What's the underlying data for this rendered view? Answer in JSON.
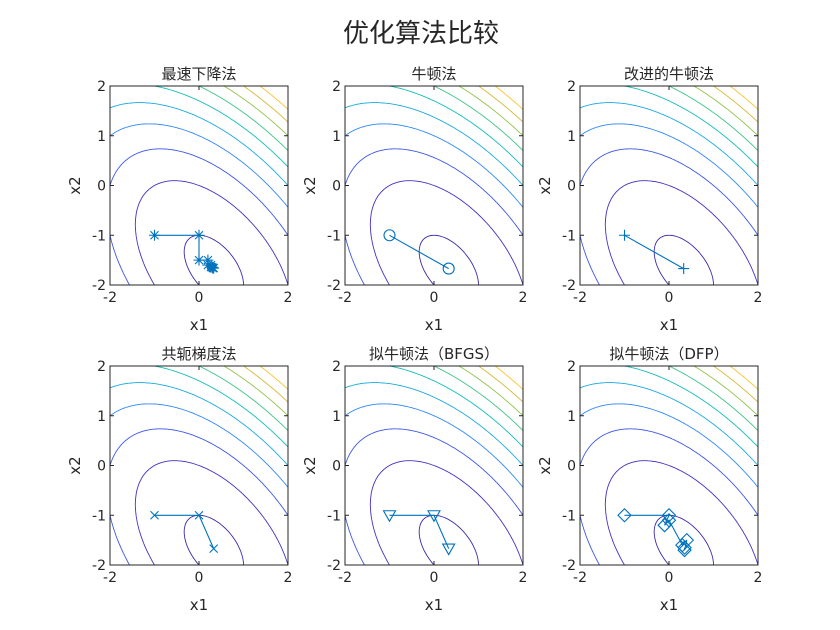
{
  "figure": {
    "title": "优化算法比较"
  },
  "chart_data": [
    {
      "type": "line",
      "title": "最速下降法",
      "xlabel": "x1",
      "ylabel": "x2",
      "xlim": [
        -2,
        2
      ],
      "ylim": [
        -2,
        2
      ],
      "xticks": [
        "-2",
        "0",
        "2"
      ],
      "yticks": [
        "2",
        "1",
        "0",
        "-1",
        "-2"
      ],
      "marker": "asterisk",
      "series": [
        {
          "x": [
            -1,
            0,
            0,
            0.2,
            0.2,
            0.27,
            0.27,
            0.3,
            0.31,
            0.33
          ],
          "y": [
            -1,
            -1,
            -1.5,
            -1.5,
            -1.6,
            -1.6,
            -1.64,
            -1.64,
            -1.66,
            -1.66
          ]
        }
      ]
    },
    {
      "type": "line",
      "title": "牛顿法",
      "xlabel": "x1",
      "ylabel": "x2",
      "xlim": [
        -2,
        2
      ],
      "ylim": [
        -2,
        2
      ],
      "xticks": [
        "-2",
        "0",
        "2"
      ],
      "yticks": [
        "2",
        "1",
        "0",
        "-1",
        "-2"
      ],
      "marker": "circle",
      "series": [
        {
          "x": [
            -1,
            0.33
          ],
          "y": [
            -1,
            -1.67
          ]
        }
      ]
    },
    {
      "type": "line",
      "title": "改进的牛顿法",
      "xlabel": "x1",
      "ylabel": "x2",
      "xlim": [
        -2,
        2
      ],
      "ylim": [
        -2,
        2
      ],
      "xticks": [
        "-2",
        "0",
        "2"
      ],
      "yticks": [
        "2",
        "1",
        "0",
        "-1",
        "-2"
      ],
      "marker": "plus",
      "series": [
        {
          "x": [
            -1,
            0.33
          ],
          "y": [
            -1,
            -1.67
          ]
        }
      ]
    },
    {
      "type": "line",
      "title": "共轭梯度法",
      "xlabel": "x1",
      "ylabel": "x2",
      "xlim": [
        -2,
        2
      ],
      "ylim": [
        -2,
        2
      ],
      "xticks": [
        "-2",
        "0",
        "2"
      ],
      "yticks": [
        "2",
        "1",
        "0",
        "-1",
        "-2"
      ],
      "marker": "x",
      "series": [
        {
          "x": [
            -1,
            0,
            0.33
          ],
          "y": [
            -1,
            -1,
            -1.67
          ]
        }
      ]
    },
    {
      "type": "line",
      "title": "拟牛顿法（BFGS）",
      "xlabel": "x1",
      "ylabel": "x2",
      "xlim": [
        -2,
        2
      ],
      "ylim": [
        -2,
        2
      ],
      "xticks": [
        "-2",
        "0",
        "2"
      ],
      "yticks": [
        "2",
        "1",
        "0",
        "-1",
        "-2"
      ],
      "marker": "triangle-down",
      "series": [
        {
          "x": [
            -1,
            0,
            0.33
          ],
          "y": [
            -1,
            -1,
            -1.67
          ]
        }
      ]
    },
    {
      "type": "line",
      "title": "拟牛顿法（DFP）",
      "xlabel": "x1",
      "ylabel": "x2",
      "xlim": [
        -2,
        2
      ],
      "ylim": [
        -2,
        2
      ],
      "xticks": [
        "-2",
        "0",
        "2"
      ],
      "yticks": [
        "2",
        "1",
        "0",
        "-1",
        "-2"
      ],
      "marker": "diamond",
      "series": [
        {
          "x": [
            -1,
            0,
            -0.1,
            0,
            0.3,
            0.4,
            0.35,
            0.35
          ],
          "y": [
            -1,
            -1,
            -1.2,
            -1.1,
            -1.6,
            -1.5,
            -1.7,
            -1.65
          ]
        }
      ]
    }
  ],
  "contour": {
    "function": "x1^2 + x1*x2 + x2^2 + x1 + 3*x2",
    "levels": [
      -2,
      0,
      2,
      4,
      6,
      8,
      10,
      12,
      14,
      16
    ]
  },
  "colors": {
    "series": "#0072BD",
    "axis": "#262626",
    "contour": [
      "#3e26a8",
      "#472ebf",
      "#3c56e6",
      "#2e87f7",
      "#1aa9e0",
      "#10beb9",
      "#3cc586",
      "#8fc54b",
      "#d5b836",
      "#fbc22c"
    ]
  }
}
